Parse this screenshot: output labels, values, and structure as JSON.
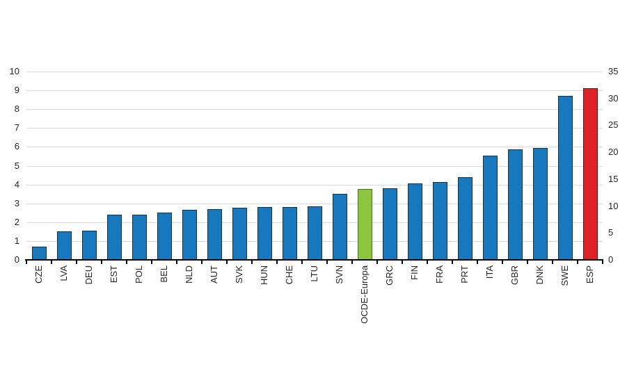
{
  "chart_data": {
    "type": "bar",
    "title": "",
    "categories": [
      "CZE",
      "LVA",
      "DEU",
      "EST",
      "POL",
      "BEL",
      "NLD",
      "AUT",
      "SVK",
      "HUN",
      "CHE",
      "LTU",
      "SVN",
      "OCDE-Europa",
      "GRC",
      "FIN",
      "FRA",
      "PRT",
      "ITA",
      "GBR",
      "DNK",
      "SWE",
      "ESP"
    ],
    "values": [
      0.7,
      1.5,
      1.55,
      2.4,
      2.4,
      2.5,
      2.65,
      2.7,
      2.75,
      2.8,
      2.8,
      2.85,
      3.5,
      3.75,
      3.8,
      4.05,
      4.15,
      4.4,
      5.55,
      5.85,
      5.95,
      8.7,
      9.1
    ],
    "bar_colors": [
      "blue",
      "blue",
      "blue",
      "blue",
      "blue",
      "blue",
      "blue",
      "blue",
      "blue",
      "blue",
      "blue",
      "blue",
      "blue",
      "green",
      "blue",
      "blue",
      "blue",
      "blue",
      "blue",
      "blue",
      "blue",
      "blue",
      "red"
    ],
    "palette": {
      "blue": "#1878be",
      "green": "#8cc540",
      "red": "#dc2227"
    },
    "left_axis": {
      "ticks": [
        0,
        1,
        2,
        3,
        4,
        5,
        6,
        7,
        8,
        9,
        10
      ],
      "range": [
        0,
        10
      ]
    },
    "right_axis": {
      "ticks": [
        0,
        5,
        10,
        15,
        20,
        25,
        30,
        35
      ],
      "range": [
        0,
        35
      ]
    },
    "grid": true,
    "legend": "none",
    "highlights": {
      "OCDE-Europa": "green",
      "ESP": "red"
    },
    "style": {
      "gridline_color": "#d9d9d9",
      "axis_color": "#000000",
      "text_color": "#262626",
      "background": "#ffffff"
    }
  }
}
